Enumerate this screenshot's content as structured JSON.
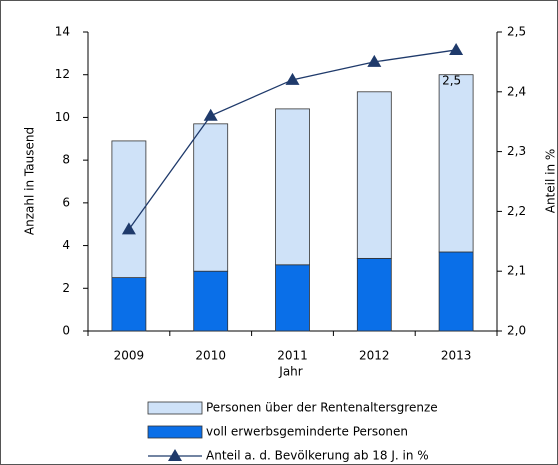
{
  "chart_data": {
    "type": "bar",
    "stacked": true,
    "categories": [
      "2009",
      "2010",
      "2011",
      "2012",
      "2013"
    ],
    "x_label": "Jahr",
    "y_label": "Anzahl in Tausend",
    "y2_label": "Anteil in %",
    "series": [
      {
        "name": "Personen über der Rentenaltersgrenze",
        "color": "#cfe2f8",
        "values": [
          6.4,
          6.9,
          7.3,
          7.8,
          8.3
        ]
      },
      {
        "name": "voll erwerbsgeminderte Personen",
        "color": "#0a6fe8",
        "values": [
          2.5,
          2.8,
          3.1,
          3.4,
          3.7
        ]
      },
      {
        "name": "Anteil a. d. Bevölkerung ab 18 J. in %",
        "color": "#1f3a6b",
        "type": "line",
        "axis": "y2",
        "values": [
          2.17,
          2.36,
          2.42,
          2.45,
          2.47
        ],
        "value_labels": [
          null,
          null,
          null,
          null,
          "2,5"
        ]
      }
    ],
    "ylim": [
      0,
      14
    ],
    "yticks": [
      0,
      2,
      4,
      6,
      8,
      10,
      12,
      14
    ],
    "y2lim": [
      2.0,
      2.5
    ],
    "y2ticks": [
      {
        "value": 2.0,
        "label": "2,0"
      },
      {
        "value": 2.1,
        "label": "2,1"
      },
      {
        "value": 2.2,
        "label": "2,2"
      },
      {
        "value": 2.3,
        "label": "2,3"
      },
      {
        "value": 2.4,
        "label": "2,4"
      },
      {
        "value": 2.5,
        "label": "2,5"
      }
    ],
    "legend": "bottom"
  }
}
